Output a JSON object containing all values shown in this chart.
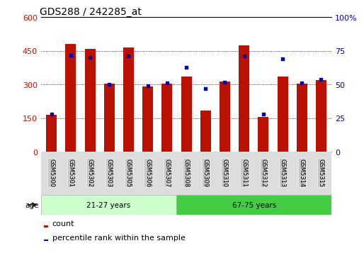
{
  "title": "GDS288 / 242285_at",
  "categories": [
    "GSM5300",
    "GSM5301",
    "GSM5302",
    "GSM5303",
    "GSM5305",
    "GSM5306",
    "GSM5307",
    "GSM5308",
    "GSM5309",
    "GSM5310",
    "GSM5311",
    "GSM5312",
    "GSM5313",
    "GSM5314",
    "GSM5315"
  ],
  "counts": [
    165,
    480,
    460,
    305,
    465,
    293,
    305,
    335,
    185,
    315,
    475,
    155,
    335,
    305,
    320
  ],
  "percentiles": [
    28,
    72,
    70,
    50,
    71,
    49,
    51,
    63,
    47,
    52,
    71,
    28,
    69,
    51,
    54
  ],
  "group1_label": "21-27 years",
  "group2_label": "67-75 years",
  "group1_count": 7,
  "group2_count": 8,
  "bar_color": "#bb1100",
  "dot_color": "#0000bb",
  "ylim_left": [
    0,
    600
  ],
  "ylim_right": [
    0,
    100
  ],
  "yticks_left": [
    0,
    150,
    300,
    450,
    600
  ],
  "yticks_right": [
    0,
    25,
    50,
    75,
    100
  ],
  "ytick_labels_right": [
    "0",
    "25",
    "50",
    "75",
    "100%"
  ],
  "bar_width": 0.55,
  "legend_count_label": "count",
  "legend_pct_label": "percentile rank within the sample",
  "age_label": "age",
  "group1_color": "#ccffcc",
  "group2_color": "#44cc44",
  "tick_bg_color": "#c8c8c8",
  "title_fontsize": 10,
  "axis_fontsize": 8,
  "tick_fontsize": 6,
  "legend_fontsize": 8
}
